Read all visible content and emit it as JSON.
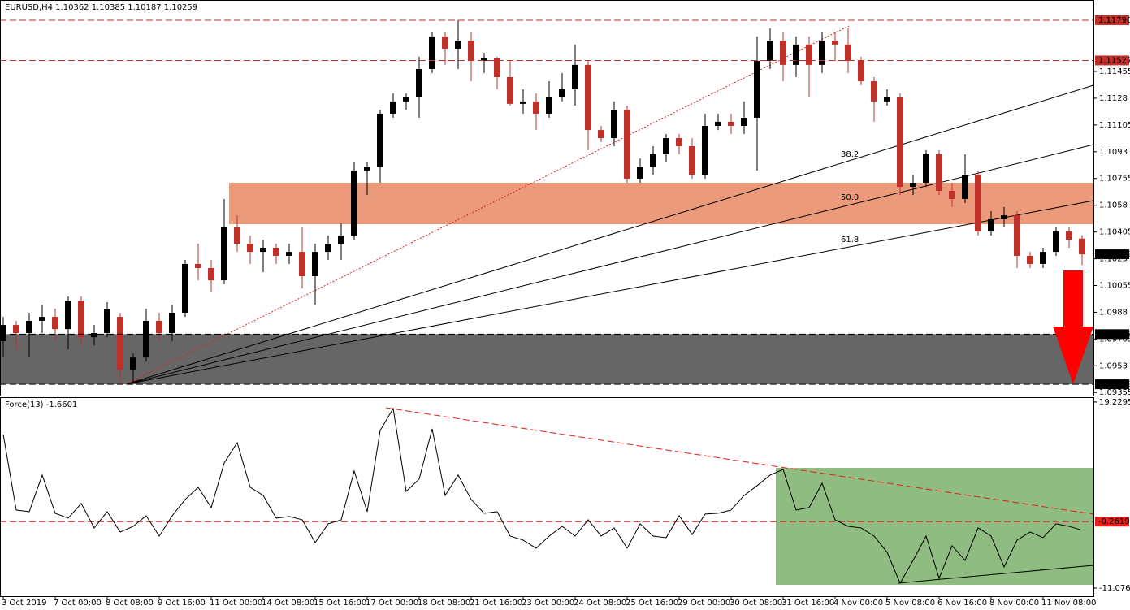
{
  "chart_data": [
    {
      "type": "candlestick",
      "title": "EURUSD,H4 1.10362 1.10385 1.10187 1.10259",
      "ylim": [
        1.09335,
        1.1188
      ],
      "yticks": [
        1.11455,
        1.1128,
        1.11105,
        1.1093,
        1.10755,
        1.1058,
        1.10405,
        1.1023,
        1.10055,
        1.0988,
        1.09705,
        1.0953,
        1.09355
      ],
      "up_color": "#000000",
      "down_color": "#c0302a",
      "levels": [
        {
          "value": 1.1179,
          "label": "1.11790",
          "color": "#c0302a"
        },
        {
          "value": 1.11527,
          "label": "1.11527",
          "color": "#c0302a"
        },
        {
          "value": 1.10259,
          "label": "1.10259",
          "color": "#000000"
        },
        {
          "value": 1.09737,
          "label": "1.09737",
          "color": "#000000"
        },
        {
          "value": 1.09409,
          "label": "1.09409",
          "color": "#000000"
        }
      ],
      "resistance_zone": [
        1.10456,
        1.10727
      ],
      "fan_labels": [
        "38.2",
        "50.0",
        "61.8"
      ],
      "ohlc": [
        [
          1.09691,
          1.0985,
          1.09584,
          1.09797
        ],
        [
          1.09797,
          1.09824,
          1.09637,
          1.09744
        ],
        [
          1.09744,
          1.09877,
          1.09584,
          1.09824
        ],
        [
          1.09824,
          1.0993,
          1.09744,
          1.0985
        ],
        [
          1.0985,
          1.09903,
          1.09691,
          1.0977
        ],
        [
          1.0977,
          1.09983,
          1.09637,
          1.09956
        ],
        [
          1.09956,
          1.09983,
          1.09664,
          1.09717
        ],
        [
          1.09717,
          1.09797,
          1.09664,
          1.09744
        ],
        [
          1.09744,
          1.09946,
          1.09717,
          1.09903
        ],
        [
          1.0985,
          1.09877,
          1.09425,
          1.09505
        ],
        [
          1.09505,
          1.09611,
          1.09425,
          1.09584
        ],
        [
          1.09584,
          1.09903,
          1.09558,
          1.09824
        ],
        [
          1.09824,
          1.09877,
          1.09691,
          1.09744
        ],
        [
          1.09744,
          1.0993,
          1.09691,
          1.09877
        ],
        [
          1.09877,
          1.10222,
          1.0985,
          1.10196
        ],
        [
          1.10196,
          1.10328,
          1.10089,
          1.10169
        ],
        [
          1.10169,
          1.10222,
          1.1001,
          1.10089
        ],
        [
          1.10089,
          1.10621,
          1.10063,
          1.10435
        ],
        [
          1.10435,
          1.10514,
          1.10275,
          1.10328
        ],
        [
          1.10328,
          1.10382,
          1.10196,
          1.10275
        ],
        [
          1.10275,
          1.10355,
          1.10142,
          1.10302
        ],
        [
          1.10302,
          1.10328,
          1.10196,
          1.10249
        ],
        [
          1.10249,
          1.10328,
          1.10196,
          1.10275
        ],
        [
          1.10275,
          1.10435,
          1.10036,
          1.10116
        ],
        [
          1.10116,
          1.10328,
          1.0993,
          1.10275
        ],
        [
          1.10275,
          1.10382,
          1.10222,
          1.10328
        ],
        [
          1.10328,
          1.10461,
          1.10222,
          1.10382
        ],
        [
          1.10382,
          1.1086,
          1.10355,
          1.10807
        ],
        [
          1.10807,
          1.1086,
          1.10647,
          1.10833
        ],
        [
          1.10833,
          1.11205,
          1.10727,
          1.11179
        ],
        [
          1.11179,
          1.11312,
          1.11152,
          1.11259
        ],
        [
          1.11259,
          1.11312,
          1.11205,
          1.11285
        ],
        [
          1.11285,
          1.11551,
          1.11152,
          1.11471
        ],
        [
          1.11471,
          1.1171,
          1.11445,
          1.11684
        ],
        [
          1.11684,
          1.1171,
          1.11498,
          1.11604
        ],
        [
          1.11604,
          1.1179,
          1.11471,
          1.11657
        ],
        [
          1.11657,
          1.1171,
          1.11391,
          1.11524
        ],
        [
          1.11524,
          1.11577,
          1.11445,
          1.1154
        ],
        [
          1.1154,
          1.11551,
          1.11338,
          1.11418
        ],
        [
          1.11418,
          1.11524,
          1.11232,
          1.11243
        ],
        [
          1.11243,
          1.11338,
          1.11179,
          1.11259
        ],
        [
          1.11259,
          1.11312,
          1.11072,
          1.11179
        ],
        [
          1.11179,
          1.11391,
          1.11152,
          1.11285
        ],
        [
          1.11285,
          1.11445,
          1.11259,
          1.11338
        ],
        [
          1.11338,
          1.11631,
          1.11232,
          1.11498
        ],
        [
          1.11498,
          1.11524,
          1.1094,
          1.11072
        ],
        [
          1.11072,
          1.11099,
          1.10993,
          1.11019
        ],
        [
          1.11019,
          1.11259,
          1.10966,
          1.11205
        ],
        [
          1.11205,
          1.11232,
          1.10727,
          1.10754
        ],
        [
          1.10754,
          1.10886,
          1.10727,
          1.10833
        ],
        [
          1.10833,
          1.10966,
          1.1078,
          1.10913
        ],
        [
          1.10913,
          1.11046,
          1.1086,
          1.11019
        ],
        [
          1.11019,
          1.11046,
          1.10913,
          1.10966
        ],
        [
          1.10966,
          1.11019,
          1.10754,
          1.1078
        ],
        [
          1.1078,
          1.11179,
          1.10754,
          1.11099
        ],
        [
          1.11099,
          1.11179,
          1.11072,
          1.11126
        ],
        [
          1.11126,
          1.11179,
          1.11046,
          1.11099
        ],
        [
          1.11099,
          1.11259,
          1.11046,
          1.11152
        ],
        [
          1.11152,
          1.11684,
          1.10807,
          1.11524
        ],
        [
          1.11524,
          1.11737,
          1.11471,
          1.11657
        ],
        [
          1.11657,
          1.1171,
          1.11391,
          1.11498
        ],
        [
          1.11498,
          1.11684,
          1.11418,
          1.11631
        ],
        [
          1.11631,
          1.11684,
          1.11285,
          1.11498
        ],
        [
          1.11498,
          1.1171,
          1.11445,
          1.11657
        ],
        [
          1.11657,
          1.1171,
          1.11524,
          1.11631
        ],
        [
          1.11631,
          1.11737,
          1.11445,
          1.11524
        ],
        [
          1.11524,
          1.11551,
          1.11365,
          1.11391
        ],
        [
          1.11391,
          1.11418,
          1.11126,
          1.11259
        ],
        [
          1.11259,
          1.11338,
          1.11232,
          1.11285
        ],
        [
          1.11285,
          1.11312,
          1.10647,
          1.107
        ],
        [
          1.107,
          1.1078,
          1.10647,
          1.10727
        ],
        [
          1.10727,
          1.1094,
          1.107,
          1.10913
        ],
        [
          1.10913,
          1.1094,
          1.10647,
          1.10674
        ],
        [
          1.10674,
          1.10727,
          1.10568,
          1.10621
        ],
        [
          1.10621,
          1.10913,
          1.10594,
          1.1078
        ],
        [
          1.1078,
          1.10807,
          1.10382,
          1.10408
        ],
        [
          1.10408,
          1.10541,
          1.10382,
          1.10488
        ],
        [
          1.10488,
          1.10568,
          1.10435,
          1.10514
        ],
        [
          1.10514,
          1.10541,
          1.10169,
          1.10249
        ],
        [
          1.10249,
          1.10275,
          1.10169,
          1.10196
        ],
        [
          1.10196,
          1.10302,
          1.10169,
          1.10275
        ],
        [
          1.10275,
          1.10435,
          1.10249,
          1.10408
        ],
        [
          1.10408,
          1.10435,
          1.10302,
          1.10355
        ],
        [
          1.10362,
          1.10385,
          1.10187,
          1.10259
        ]
      ]
    },
    {
      "type": "line",
      "title": "Force(13) -1.6601",
      "color": "#000000",
      "ylim": [
        -13.86,
        19.88
      ],
      "yticks": [
        19.2295,
        -11.0765
      ],
      "level": {
        "value": -0.2619,
        "color": "#e0201a"
      },
      "values": [
        13.94,
        1.63,
        1.36,
        7.32,
        1.1,
        0.31,
        2.69,
        -1.28,
        1.36,
        -1.95,
        -1.02,
        0.7,
        -2.61,
        0.7,
        3.35,
        5.33,
        2.03,
        9.3,
        12.61,
        5.33,
        4.01,
        0.31,
        0.57,
        0.04,
        -3.66,
        -0.62,
        0.04,
        7.98,
        1.36,
        14.6,
        18.17,
        4.67,
        6.66,
        14.86,
        4.01,
        7.32,
        3.35,
        1.1,
        1.36,
        -2.61,
        -3.27,
        -4.59,
        -2.61,
        -1.02,
        -2.61,
        0.04,
        -2.61,
        -1.28,
        -4.59,
        -0.62,
        -2.61,
        -2.87,
        0.7,
        -2.34,
        0.97,
        1.1,
        1.63,
        4.01,
        5.6,
        7.32,
        8.25,
        1.63,
        2.03,
        6.0,
        0.04,
        -1.02,
        -1.28,
        -2.61,
        -5.25,
        -10.28,
        -6.58,
        -2.61,
        -9.49,
        -4.19,
        -6.58,
        -1.28,
        -2.61,
        -7.64,
        -3.27,
        -1.95,
        -2.87,
        -0.62,
        -1.02,
        -1.66
      ],
      "xticks": [
        {
          "value": 0,
          "label": "3 Oct 2019"
        },
        {
          "value": 4,
          "label": "7 Oct 00:00"
        },
        {
          "value": 8,
          "label": "8 Oct 08:00"
        },
        {
          "value": 12,
          "label": "9 Oct 16:00"
        },
        {
          "value": 16,
          "label": "11 Oct 00:00"
        },
        {
          "value": 20,
          "label": "14 Oct 08:00"
        },
        {
          "value": 24,
          "label": "15 Oct 16:00"
        },
        {
          "value": 28,
          "label": "17 Oct 00:00"
        },
        {
          "value": 32,
          "label": "18 Oct 08:00"
        },
        {
          "value": 36,
          "label": "21 Oct 16:00"
        },
        {
          "value": 40,
          "label": "23 Oct 00:00"
        },
        {
          "value": 44,
          "label": "24 Oct 08:00"
        },
        {
          "value": 48,
          "label": "25 Oct 16:00"
        },
        {
          "value": 52,
          "label": "29 Oct 00:00"
        },
        {
          "value": 56,
          "label": "30 Oct 08:00"
        },
        {
          "value": 60,
          "label": "31 Oct 16:00"
        },
        {
          "value": 64,
          "label": "4 Nov 00:00"
        },
        {
          "value": 68,
          "label": "5 Nov 08:00"
        },
        {
          "value": 72,
          "label": "6 Nov 16:00"
        },
        {
          "value": 76,
          "label": "8 Nov 00:00"
        },
        {
          "value": 80,
          "label": "11 Nov 08:00"
        }
      ]
    }
  ]
}
